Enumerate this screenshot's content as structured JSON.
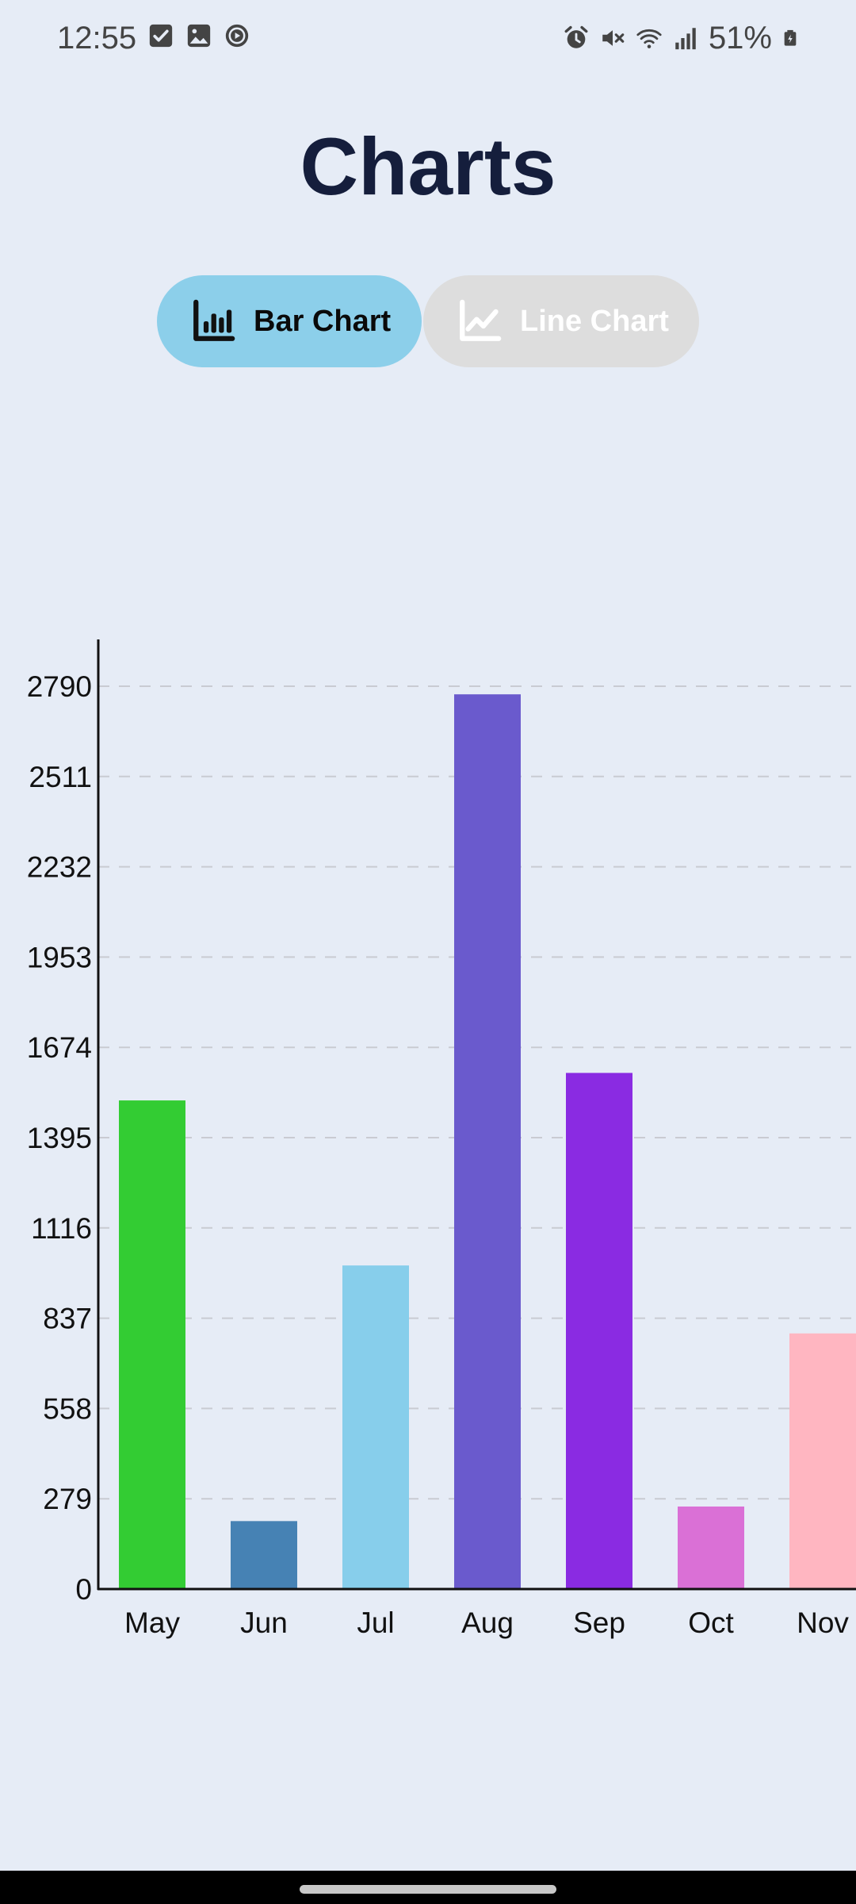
{
  "status_bar": {
    "time": "12:55",
    "battery": "51%",
    "left_icons": [
      "checkbox-icon",
      "image-icon",
      "play-circle-icon"
    ],
    "right_icons": [
      "alarm-icon",
      "mute-icon",
      "wifi-icon",
      "signal-icon",
      "battery-icon"
    ]
  },
  "page": {
    "title": "Charts"
  },
  "toggle": {
    "bar_label": "Bar Chart",
    "line_label": "Line Chart",
    "selected": "bar",
    "selected_color": "#8ccfea",
    "unselected_color": "#dddddd"
  },
  "chart_data": {
    "type": "bar",
    "categories": [
      "May",
      "Jun",
      "Jul",
      "Aug",
      "Sep",
      "Oct",
      "Nov"
    ],
    "values": [
      1510,
      210,
      1000,
      2765,
      1595,
      255,
      790
    ],
    "colors": [
      "#33cc33",
      "#4682b4",
      "#87ceeb",
      "#6a5acd",
      "#8a2be2",
      "#da70d6",
      "#ffb6c1"
    ],
    "yticks": [
      0,
      279,
      558,
      837,
      1116,
      1395,
      1674,
      1953,
      2232,
      2511,
      2790
    ],
    "ylim": [
      0,
      2930
    ],
    "grid": "dashed-horizontal",
    "title": "",
    "xlabel": "",
    "ylabel": ""
  }
}
